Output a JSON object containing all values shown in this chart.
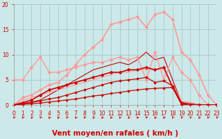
{
  "title": "",
  "xlabel": "Vent moyen/en rafales ( km/h )",
  "ylabel": "",
  "bg_color": "#cce8e8",
  "grid_color": "#aacece",
  "xlim": [
    0,
    23
  ],
  "ylim": [
    0,
    20
  ],
  "yticks": [
    0,
    5,
    10,
    15,
    20
  ],
  "xticks": [
    0,
    1,
    2,
    3,
    4,
    5,
    6,
    7,
    8,
    9,
    10,
    11,
    12,
    13,
    14,
    15,
    16,
    17,
    18,
    19,
    20,
    21,
    22,
    23
  ],
  "lines": [
    {
      "x": [
        0,
        1,
        2,
        3,
        4,
        5,
        6,
        7,
        8,
        9,
        10,
        11,
        12,
        13,
        14,
        15,
        16,
        17,
        18,
        19,
        20,
        21,
        22,
        23
      ],
      "y": [
        0,
        0.15,
        0.25,
        0.4,
        0.6,
        0.8,
        1.0,
        1.2,
        1.5,
        1.8,
        2.0,
        2.3,
        2.5,
        2.8,
        3.0,
        3.2,
        3.3,
        3.4,
        3.5,
        0.2,
        0.0,
        0.0,
        0.0,
        0.0
      ],
      "color": "#cc0000",
      "lw": 0.9,
      "marker": "D",
      "ms": 2.0,
      "zorder": 4
    },
    {
      "x": [
        0,
        1,
        2,
        3,
        4,
        5,
        6,
        7,
        8,
        9,
        10,
        11,
        12,
        13,
        14,
        15,
        16,
        17,
        18,
        19,
        20,
        21,
        22,
        23
      ],
      "y": [
        0,
        0.3,
        0.5,
        0.8,
        1.2,
        1.5,
        2.0,
        2.5,
        3.0,
        3.5,
        4.0,
        4.5,
        4.8,
        5.0,
        5.2,
        5.5,
        4.5,
        4.8,
        3.8,
        0.5,
        0.0,
        0.0,
        0.0,
        0.0
      ],
      "color": "#cc0000",
      "lw": 0.9,
      "marker": "D",
      "ms": 2.0,
      "zorder": 4
    },
    {
      "x": [
        0,
        1,
        2,
        3,
        4,
        5,
        6,
        7,
        8,
        9,
        10,
        11,
        12,
        13,
        14,
        15,
        16,
        17,
        18,
        19,
        20,
        21,
        22,
        23
      ],
      "y": [
        0,
        0.5,
        1.0,
        2.0,
        3.0,
        3.5,
        4.0,
        4.5,
        5.0,
        5.5,
        6.0,
        6.5,
        6.5,
        7.0,
        7.0,
        7.5,
        7.0,
        7.5,
        3.5,
        0.2,
        0.0,
        0.0,
        0.0,
        0.0
      ],
      "color": "#cc0000",
      "lw": 1.2,
      "marker": "D",
      "ms": 2.5,
      "zorder": 4
    },
    {
      "x": [
        0,
        1,
        2,
        3,
        4,
        5,
        6,
        7,
        8,
        9,
        10,
        11,
        12,
        13,
        14,
        15,
        16,
        17,
        18,
        19,
        20,
        21,
        22,
        23
      ],
      "y": [
        0,
        0.3,
        0.6,
        1.0,
        2.0,
        3.0,
        4.0,
        5.0,
        6.0,
        7.0,
        7.5,
        8.0,
        8.5,
        8.0,
        9.0,
        10.5,
        9.0,
        9.5,
        5.0,
        0.5,
        0.3,
        0.0,
        0.0,
        0.0
      ],
      "color": "#cc0000",
      "lw": 0.8,
      "marker": null,
      "ms": 0,
      "zorder": 3
    },
    {
      "x": [
        0,
        1,
        2,
        3,
        4,
        5,
        6,
        7,
        8,
        9,
        10,
        11,
        12,
        13,
        14,
        15,
        16,
        17,
        18,
        19,
        20,
        21,
        22,
        23
      ],
      "y": [
        5,
        5,
        7.5,
        9.5,
        6.5,
        6.5,
        7.0,
        7.5,
        8.0,
        8.5,
        8.5,
        9.0,
        9.5,
        9.0,
        9.5,
        5.0,
        10.5,
        5.0,
        9.5,
        6.5,
        5.0,
        2.0,
        0.0,
        0.0
      ],
      "color": "#ff9999",
      "lw": 1.0,
      "marker": "D",
      "ms": 2.5,
      "zorder": 3
    },
    {
      "x": [
        0,
        1,
        2,
        3,
        4,
        5,
        6,
        7,
        8,
        9,
        10,
        11,
        12,
        13,
        14,
        15,
        16,
        17,
        18,
        19,
        20,
        21,
        22,
        23
      ],
      "y": [
        0,
        1.0,
        1.5,
        2.0,
        2.5,
        3.0,
        3.5,
        4.0,
        4.5,
        5.0,
        5.5,
        6.0,
        6.5,
        6.5,
        7.0,
        7.0,
        7.0,
        7.0,
        4.0,
        0.8,
        0.5,
        0.2,
        0.0,
        0.0
      ],
      "color": "#ff9999",
      "lw": 0.8,
      "marker": null,
      "ms": 0,
      "zorder": 3
    },
    {
      "x": [
        0,
        1,
        2,
        3,
        4,
        5,
        6,
        7,
        8,
        9,
        10,
        11,
        12,
        13,
        14,
        15,
        16,
        17,
        18,
        19,
        20,
        21,
        22,
        23
      ],
      "y": [
        0,
        1.5,
        2.0,
        3.0,
        4.0,
        4.5,
        6.0,
        8.0,
        10.0,
        11.5,
        13.0,
        16.0,
        16.5,
        17.0,
        17.5,
        15.5,
        18.0,
        18.5,
        17.0,
        10.5,
        9.0,
        6.0,
        2.0,
        0.0
      ],
      "color": "#ff9999",
      "lw": 1.2,
      "marker": "D",
      "ms": 2.5,
      "zorder": 3
    }
  ],
  "arrow_color": "#cc0000",
  "tick_label_color": "#cc0000",
  "axis_label_color": "#cc0000",
  "tick_fontsize": 5.5,
  "xlabel_fontsize": 7.5,
  "arrow_angles": [
    -45,
    -45,
    -90,
    -45,
    -90,
    -90,
    -45,
    -90,
    -45,
    -90,
    -90,
    -90,
    -90,
    -90,
    -90,
    -45,
    -90,
    -90,
    -45,
    -135,
    -135,
    -90,
    -135,
    -45
  ]
}
